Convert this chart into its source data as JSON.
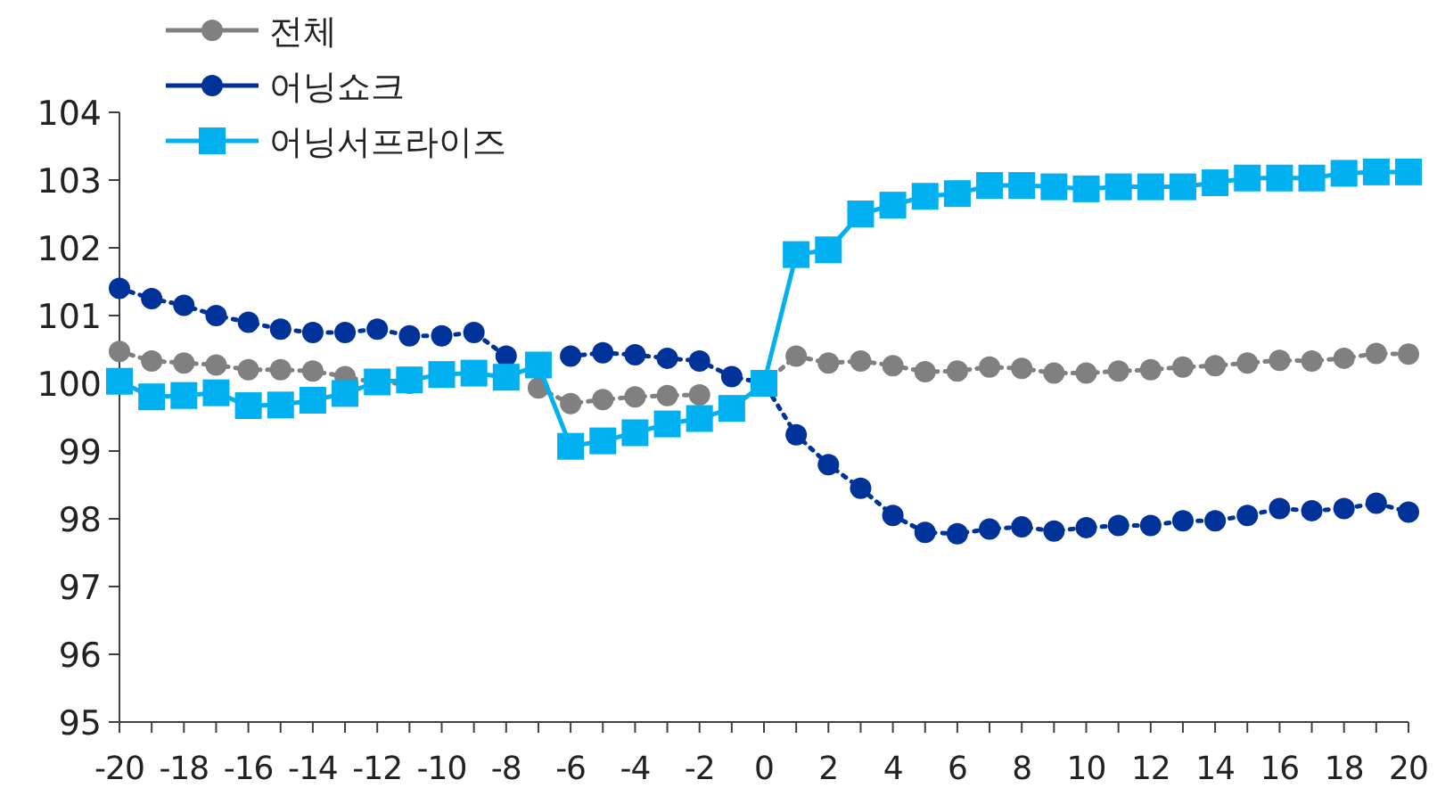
{
  "chart_data": {
    "type": "line",
    "x": [
      -20,
      -19,
      -18,
      -17,
      -16,
      -15,
      -14,
      -13,
      -12,
      -11,
      -10,
      -9,
      -8,
      -7,
      -6,
      -5,
      -4,
      -3,
      -2,
      -1,
      0,
      1,
      2,
      3,
      4,
      5,
      6,
      7,
      8,
      9,
      10,
      11,
      12,
      13,
      14,
      15,
      16,
      17,
      18,
      19,
      20
    ],
    "series": [
      {
        "name": "전체",
        "color": "#808080",
        "marker": "circle",
        "line_style": "dotted",
        "values": [
          100.47,
          100.33,
          100.3,
          100.27,
          100.2,
          100.2,
          100.18,
          100.1,
          100.0,
          100.0,
          null,
          null,
          null,
          99.93,
          99.7,
          99.76,
          99.8,
          99.82,
          99.83,
          null,
          100,
          100.4,
          100.3,
          100.33,
          100.26,
          100.17,
          100.18,
          100.24,
          100.22,
          100.15,
          100.15,
          100.18,
          100.2,
          100.24,
          100.26,
          100.3,
          100.34,
          100.33,
          100.37,
          100.44,
          100.43
        ]
      },
      {
        "name": "어닝쇼크",
        "color": "#003399",
        "marker": "circle",
        "line_style": "dotted",
        "values": [
          101.4,
          101.25,
          101.15,
          101.0,
          100.9,
          100.8,
          100.75,
          100.75,
          100.8,
          100.7,
          100.7,
          100.75,
          100.4,
          null,
          100.4,
          100.45,
          100.42,
          100.37,
          100.33,
          100.1,
          100,
          99.24,
          98.8,
          98.45,
          98.05,
          97.8,
          97.78,
          97.85,
          97.88,
          97.82,
          97.87,
          97.9,
          97.9,
          97.97,
          97.97,
          98.05,
          98.15,
          98.12,
          98.15,
          98.23,
          98.1
        ]
      },
      {
        "name": "어닝서프라이즈",
        "color": "#00b0f0",
        "marker": "square",
        "line_style": "solid",
        "values": [
          100.03,
          99.8,
          99.82,
          99.86,
          99.67,
          99.68,
          99.75,
          99.85,
          100.02,
          100.05,
          100.13,
          100.15,
          100.09,
          100.27,
          99.07,
          99.15,
          99.27,
          99.4,
          99.48,
          99.63,
          100,
          101.9,
          101.97,
          102.5,
          102.63,
          102.76,
          102.8,
          102.92,
          102.92,
          102.9,
          102.87,
          102.9,
          102.9,
          102.9,
          102.96,
          103.03,
          103.03,
          103.03,
          103.1,
          103.12,
          103.12
        ]
      }
    ],
    "xlim": [
      -20,
      20
    ],
    "xticks": [
      -20,
      {
        "value": -19,
        "label": null
      },
      -18,
      {
        "value": -17,
        "label": null
      },
      -16,
      {
        "value": -15,
        "label": null
      },
      -14,
      {
        "value": -13,
        "label": null
      },
      -12,
      {
        "value": -11,
        "label": null
      },
      -10,
      {
        "value": -9,
        "label": null
      },
      -8,
      {
        "value": -7,
        "label": null
      },
      -6,
      {
        "value": -5,
        "label": null
      },
      -4,
      {
        "value": -3,
        "label": null
      },
      -2,
      {
        "value": -1,
        "label": null
      },
      0,
      {
        "value": 1,
        "label": null
      },
      2,
      {
        "value": 3,
        "label": null
      },
      4,
      {
        "value": 5,
        "label": null
      },
      6,
      {
        "value": 7,
        "label": null
      },
      8,
      {
        "value": 9,
        "label": null
      },
      10,
      {
        "value": 11,
        "label": null
      },
      12,
      {
        "value": 13,
        "label": null
      },
      14,
      {
        "value": 15,
        "label": null
      },
      16,
      {
        "value": 17,
        "label": null
      },
      18,
      {
        "value": 19,
        "label": null
      },
      20
    ],
    "ylim": [
      95,
      104
    ],
    "yticks": [
      95,
      96,
      97,
      98,
      99,
      100,
      101,
      102,
      103,
      104
    ],
    "grid": false,
    "legend": "top left"
  }
}
